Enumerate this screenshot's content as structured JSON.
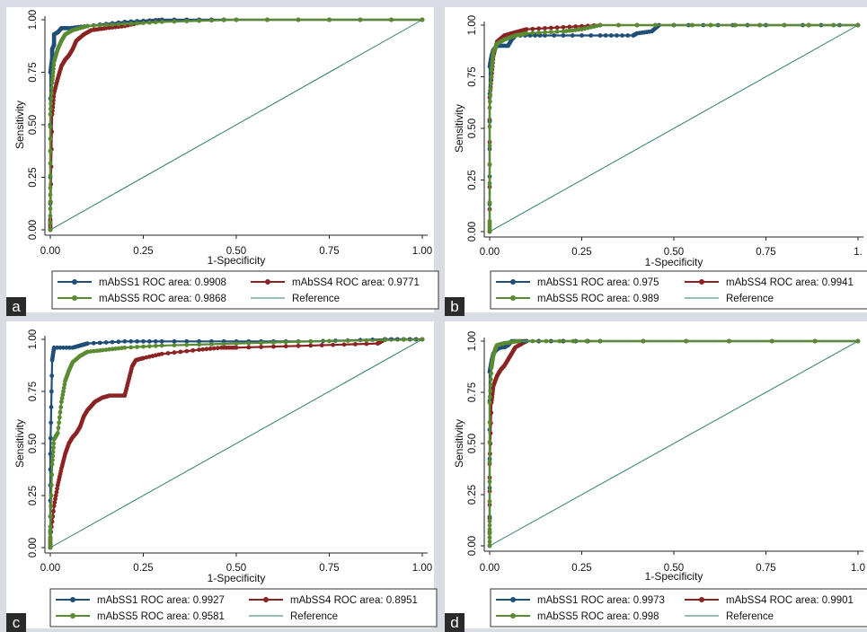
{
  "colors": {
    "mAbSS1": "#1f4e79",
    "mAbSS4": "#8b2323",
    "mAbSS5": "#5a8a32",
    "reference": "#2e7d6b"
  },
  "chart_data": [
    {
      "panel": "a",
      "type": "line",
      "xlabel": "1-Specificity",
      "ylabel": "Sensitivity",
      "xlim": [
        0,
        1
      ],
      "ylim": [
        0,
        1
      ],
      "xticks": [
        "0.00",
        "0.25",
        "0.50",
        "0.75",
        "1.00"
      ],
      "yticks": [
        "0.00",
        "0.25",
        "0.50",
        "0.75",
        "1.00"
      ],
      "legend": [
        "mAbSS1 ROC area: 0.9908",
        "mAbSS4 ROC area: 0.9771",
        "mAbSS5 ROC area: 0.9868",
        "Reference"
      ],
      "series": [
        {
          "key": "mAbSS1",
          "x": [
            0,
            0,
            0.005,
            0.005,
            0.01,
            0.01,
            0.02,
            0.03,
            0.05,
            0.1,
            0.2,
            0.3,
            0.5,
            1.0
          ],
          "y": [
            0,
            0.75,
            0.82,
            0.86,
            0.88,
            0.93,
            0.94,
            0.96,
            0.96,
            0.97,
            0.99,
            1.0,
            1.0,
            1.0
          ]
        },
        {
          "key": "mAbSS4",
          "x": [
            0,
            0,
            0.005,
            0.01,
            0.02,
            0.03,
            0.04,
            0.05,
            0.06,
            0.07,
            0.09,
            0.11,
            0.15,
            0.2,
            0.25,
            0.3,
            0.5,
            1.0
          ],
          "y": [
            0,
            0.05,
            0.55,
            0.65,
            0.72,
            0.78,
            0.81,
            0.83,
            0.86,
            0.9,
            0.93,
            0.95,
            0.96,
            0.97,
            0.99,
            1.0,
            1.0,
            1.0
          ]
        },
        {
          "key": "mAbSS5",
          "x": [
            0,
            0,
            0,
            0.005,
            0.01,
            0.02,
            0.03,
            0.04,
            0.06,
            0.1,
            0.2,
            0.3,
            0.5,
            1.0
          ],
          "y": [
            0,
            0.2,
            0.55,
            0.7,
            0.8,
            0.86,
            0.9,
            0.93,
            0.95,
            0.97,
            0.98,
            0.99,
            1.0,
            1.0
          ]
        },
        {
          "key": "reference",
          "x": [
            0,
            1
          ],
          "y": [
            0,
            1
          ]
        }
      ]
    },
    {
      "panel": "b",
      "type": "line",
      "xlabel": "1-Specificity",
      "ylabel": "Sensitivity",
      "xlim": [
        0,
        1
      ],
      "ylim": [
        0,
        1
      ],
      "xticks": [
        "0.00",
        "0.25",
        "0.50",
        "0.75",
        "1."
      ],
      "yticks": [
        "0.00",
        "0.25",
        "0.50",
        "0.75",
        "1.00"
      ],
      "legend": [
        "mAbSS1 ROC area: 0.975",
        "mAbSS4 ROC area: 0.9941",
        "mAbSS5 ROC area: 0.989",
        "Reference"
      ],
      "series": [
        {
          "key": "mAbSS1",
          "x": [
            0,
            0,
            0.005,
            0.01,
            0.02,
            0.05,
            0.06,
            0.07,
            0.15,
            0.3,
            0.39,
            0.4,
            0.44,
            0.46,
            0.7,
            1.0
          ],
          "y": [
            0,
            0.8,
            0.85,
            0.88,
            0.9,
            0.9,
            0.93,
            0.95,
            0.95,
            0.95,
            0.95,
            0.96,
            0.97,
            1.0,
            1.0,
            1.0
          ]
        },
        {
          "key": "mAbSS4",
          "x": [
            0,
            0,
            0.005,
            0.01,
            0.02,
            0.04,
            0.06,
            0.08,
            0.1,
            0.2,
            0.3,
            0.6,
            1.0
          ],
          "y": [
            0,
            0.65,
            0.75,
            0.85,
            0.92,
            0.95,
            0.96,
            0.97,
            0.98,
            0.99,
            1.0,
            1.0,
            1.0
          ]
        },
        {
          "key": "mAbSS5",
          "x": [
            0,
            0,
            0,
            0.005,
            0.01,
            0.02,
            0.04,
            0.07,
            0.1,
            0.2,
            0.25,
            0.3,
            0.6,
            1.0
          ],
          "y": [
            0,
            0.05,
            0.6,
            0.78,
            0.87,
            0.91,
            0.93,
            0.95,
            0.96,
            0.97,
            0.98,
            1.0,
            1.0,
            1.0
          ]
        },
        {
          "key": "reference",
          "x": [
            0,
            1
          ],
          "y": [
            0,
            1
          ]
        }
      ]
    },
    {
      "panel": "c",
      "type": "line",
      "xlabel": "1-Specificity",
      "ylabel": "Sensitivity",
      "xlim": [
        0,
        1
      ],
      "ylim": [
        0,
        1
      ],
      "xticks": [
        "0.00",
        "0.25",
        "0.50",
        "0.75",
        "1.00"
      ],
      "yticks": [
        "0.00",
        "0.25",
        "0.50",
        "0.75",
        "1.00"
      ],
      "legend": [
        "mAbSS1 ROC area: 0.9927",
        "mAbSS4 ROC area: 0.8951",
        "mAbSS5 ROC area: 0.9581",
        "Reference"
      ],
      "series": [
        {
          "key": "mAbSS1",
          "x": [
            0,
            0,
            0.005,
            0.01,
            0.06,
            0.08,
            0.1,
            0.2,
            0.3,
            0.5,
            0.7,
            0.9,
            1.0
          ],
          "y": [
            0,
            0.45,
            0.9,
            0.96,
            0.96,
            0.97,
            0.98,
            0.99,
            0.99,
            0.99,
            0.99,
            1.0,
            1.0
          ]
        },
        {
          "key": "mAbSS4",
          "x": [
            0,
            0,
            0.01,
            0.02,
            0.03,
            0.04,
            0.05,
            0.06,
            0.07,
            0.08,
            0.09,
            0.1,
            0.11,
            0.12,
            0.14,
            0.16,
            0.2,
            0.21,
            0.22,
            0.23,
            0.25,
            0.3,
            0.4,
            0.46,
            0.5,
            0.7,
            0.88,
            0.9,
            1.0
          ],
          "y": [
            0,
            0.05,
            0.2,
            0.3,
            0.38,
            0.45,
            0.5,
            0.53,
            0.55,
            0.58,
            0.63,
            0.66,
            0.68,
            0.7,
            0.72,
            0.73,
            0.73,
            0.8,
            0.87,
            0.9,
            0.91,
            0.93,
            0.95,
            0.96,
            0.96,
            0.97,
            0.98,
            1.0,
            1.0
          ]
        },
        {
          "key": "mAbSS5",
          "x": [
            0,
            0,
            0.005,
            0.01,
            0.02,
            0.03,
            0.04,
            0.05,
            0.06,
            0.08,
            0.1,
            0.15,
            0.2,
            0.3,
            0.5,
            0.7,
            1.0
          ],
          "y": [
            0,
            0.1,
            0.4,
            0.52,
            0.55,
            0.7,
            0.8,
            0.85,
            0.89,
            0.92,
            0.94,
            0.95,
            0.96,
            0.97,
            0.98,
            0.99,
            1.0
          ]
        },
        {
          "key": "reference",
          "x": [
            0,
            1
          ],
          "y": [
            0,
            1
          ]
        }
      ]
    },
    {
      "panel": "d",
      "type": "line",
      "xlabel": "1-Specificity",
      "ylabel": "Sensitivity",
      "xlim": [
        0,
        1
      ],
      "ylim": [
        0,
        1
      ],
      "xticks": [
        "0.00",
        "0.25",
        "0.50",
        "0.75",
        "1.0"
      ],
      "yticks": [
        "0.00",
        "0.25",
        "0.50",
        "0.75",
        "1.00"
      ],
      "legend": [
        "mAbSS1 ROC area: 0.9973",
        "mAbSS4 ROC area: 0.9901",
        "mAbSS5 ROC area: 0.998",
        "Reference"
      ],
      "series": [
        {
          "key": "mAbSS1",
          "x": [
            0,
            0,
            0.005,
            0.01,
            0.02,
            0.03,
            0.04,
            0.05,
            0.06,
            0.1,
            0.3,
            1.0
          ],
          "y": [
            0,
            0.85,
            0.9,
            0.94,
            0.96,
            0.97,
            0.97,
            0.98,
            1.0,
            1.0,
            1.0,
            1.0
          ]
        },
        {
          "key": "mAbSS4",
          "x": [
            0,
            0,
            0.005,
            0.01,
            0.02,
            0.03,
            0.04,
            0.05,
            0.06,
            0.07,
            0.1,
            0.3,
            1.0
          ],
          "y": [
            0,
            0.4,
            0.7,
            0.78,
            0.83,
            0.86,
            0.88,
            0.91,
            0.94,
            0.97,
            1.0,
            1.0,
            1.0
          ]
        },
        {
          "key": "mAbSS5",
          "x": [
            0,
            0,
            0,
            0.005,
            0.01,
            0.015,
            0.02,
            0.04,
            0.08,
            0.3,
            1.0
          ],
          "y": [
            0,
            0.12,
            0.7,
            0.87,
            0.93,
            0.96,
            0.98,
            0.99,
            1.0,
            1.0,
            1.0
          ]
        },
        {
          "key": "reference",
          "x": [
            0,
            1
          ],
          "y": [
            0,
            1
          ]
        }
      ]
    }
  ]
}
